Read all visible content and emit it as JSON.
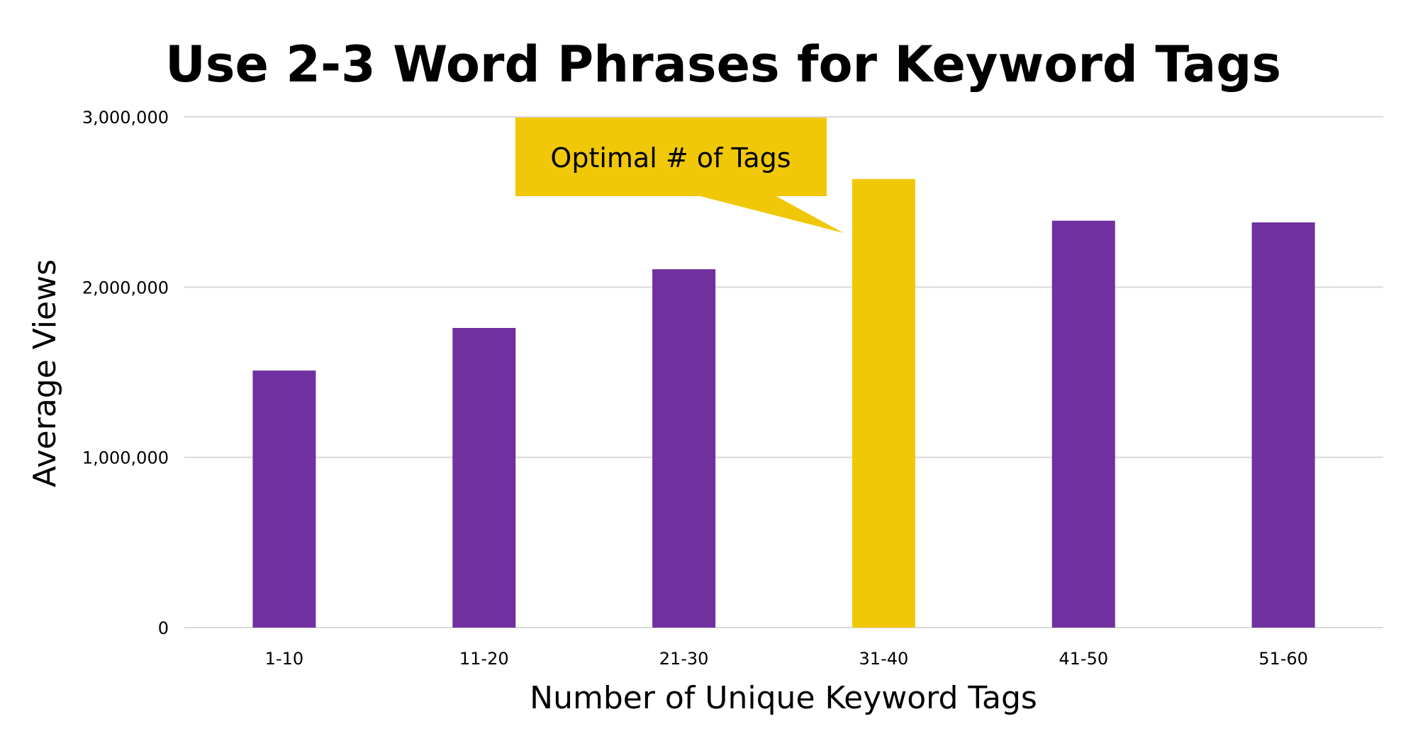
{
  "chart_data": {
    "type": "bar",
    "title": "Use 2-3 Word Phrases for Keyword Tags",
    "xlabel": "Number of Unique Keyword Tags",
    "ylabel": "Average Views",
    "categories": [
      "1-10",
      "11-20",
      "21-30",
      "31-40",
      "41-50",
      "51-60"
    ],
    "values": [
      1510000,
      1760000,
      2105000,
      2635000,
      2390000,
      2380000
    ],
    "highlight_index": 3,
    "ylim": [
      0,
      3000000
    ],
    "yticks": [
      0,
      1000000,
      2000000,
      3000000
    ],
    "ytick_labels": [
      "0",
      "1,000,000",
      "2,000,000",
      "3,000,000"
    ],
    "grid": true,
    "annotation": "Optimal # of Tags",
    "colors": {
      "bar": "#7030A0",
      "highlight": "#F0C808",
      "grid": "#D9D9D9",
      "callout": "#F0C808"
    }
  }
}
